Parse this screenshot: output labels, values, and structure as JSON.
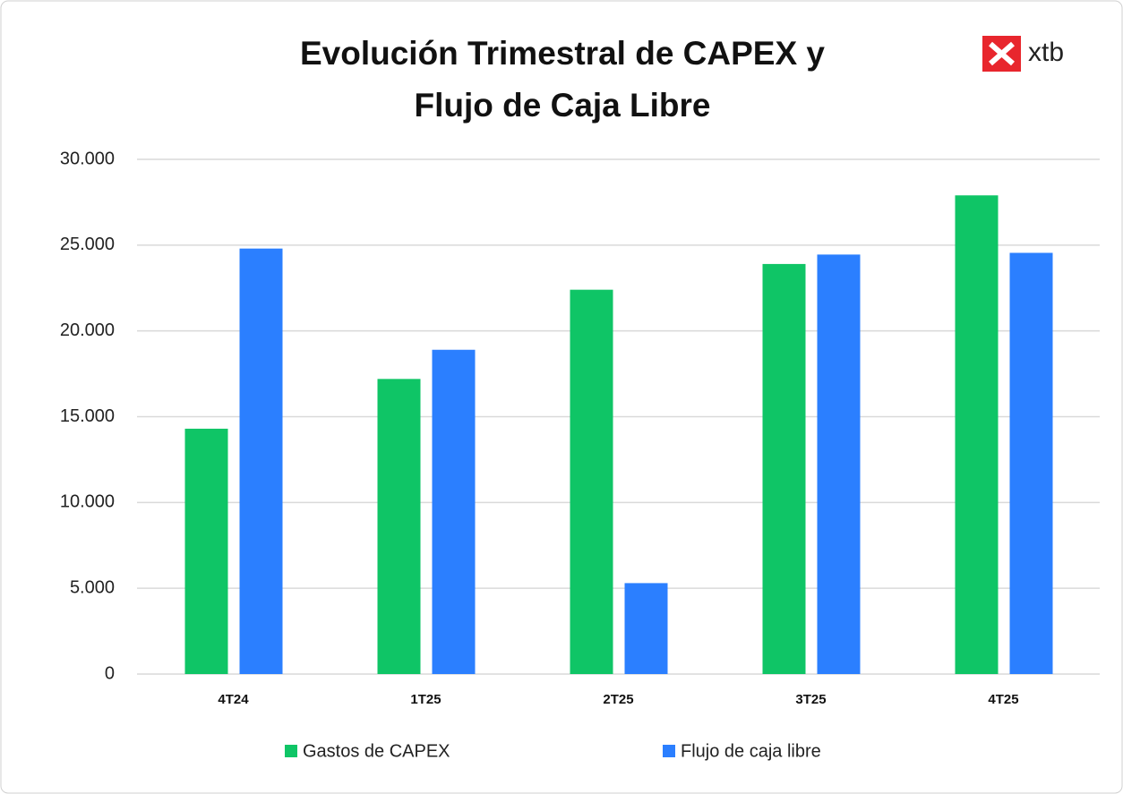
{
  "chart_data": {
    "type": "bar",
    "title": [
      "Evolución Trimestral  de CAPEX y",
      "Flujo de Caja Libre"
    ],
    "logo": "xtb",
    "categories": [
      "4T24",
      "1T25",
      "2T25",
      "3T25",
      "4T25"
    ],
    "series": [
      {
        "name": "Gastos de CAPEX",
        "color": "#0fc566",
        "values": [
          14300,
          17200,
          22400,
          23900,
          27900
        ]
      },
      {
        "name": "Flujo de caja libre",
        "color": "#2b7fff",
        "values": [
          24800,
          18900,
          5300,
          24450,
          24550
        ]
      }
    ],
    "ylim": [
      0,
      30000
    ],
    "yticks": [
      0,
      {
        "value": 5000,
        "label": "5.000"
      },
      {
        "value": 10000,
        "label": "10.000"
      },
      {
        "value": 15000,
        "label": "15.000"
      },
      {
        "value": 20000,
        "label": "20.000"
      },
      {
        "value": 25000,
        "label": "25.000"
      },
      {
        "value": 30000,
        "label": "30.000"
      }
    ],
    "grid": true,
    "legend": "bottom"
  }
}
